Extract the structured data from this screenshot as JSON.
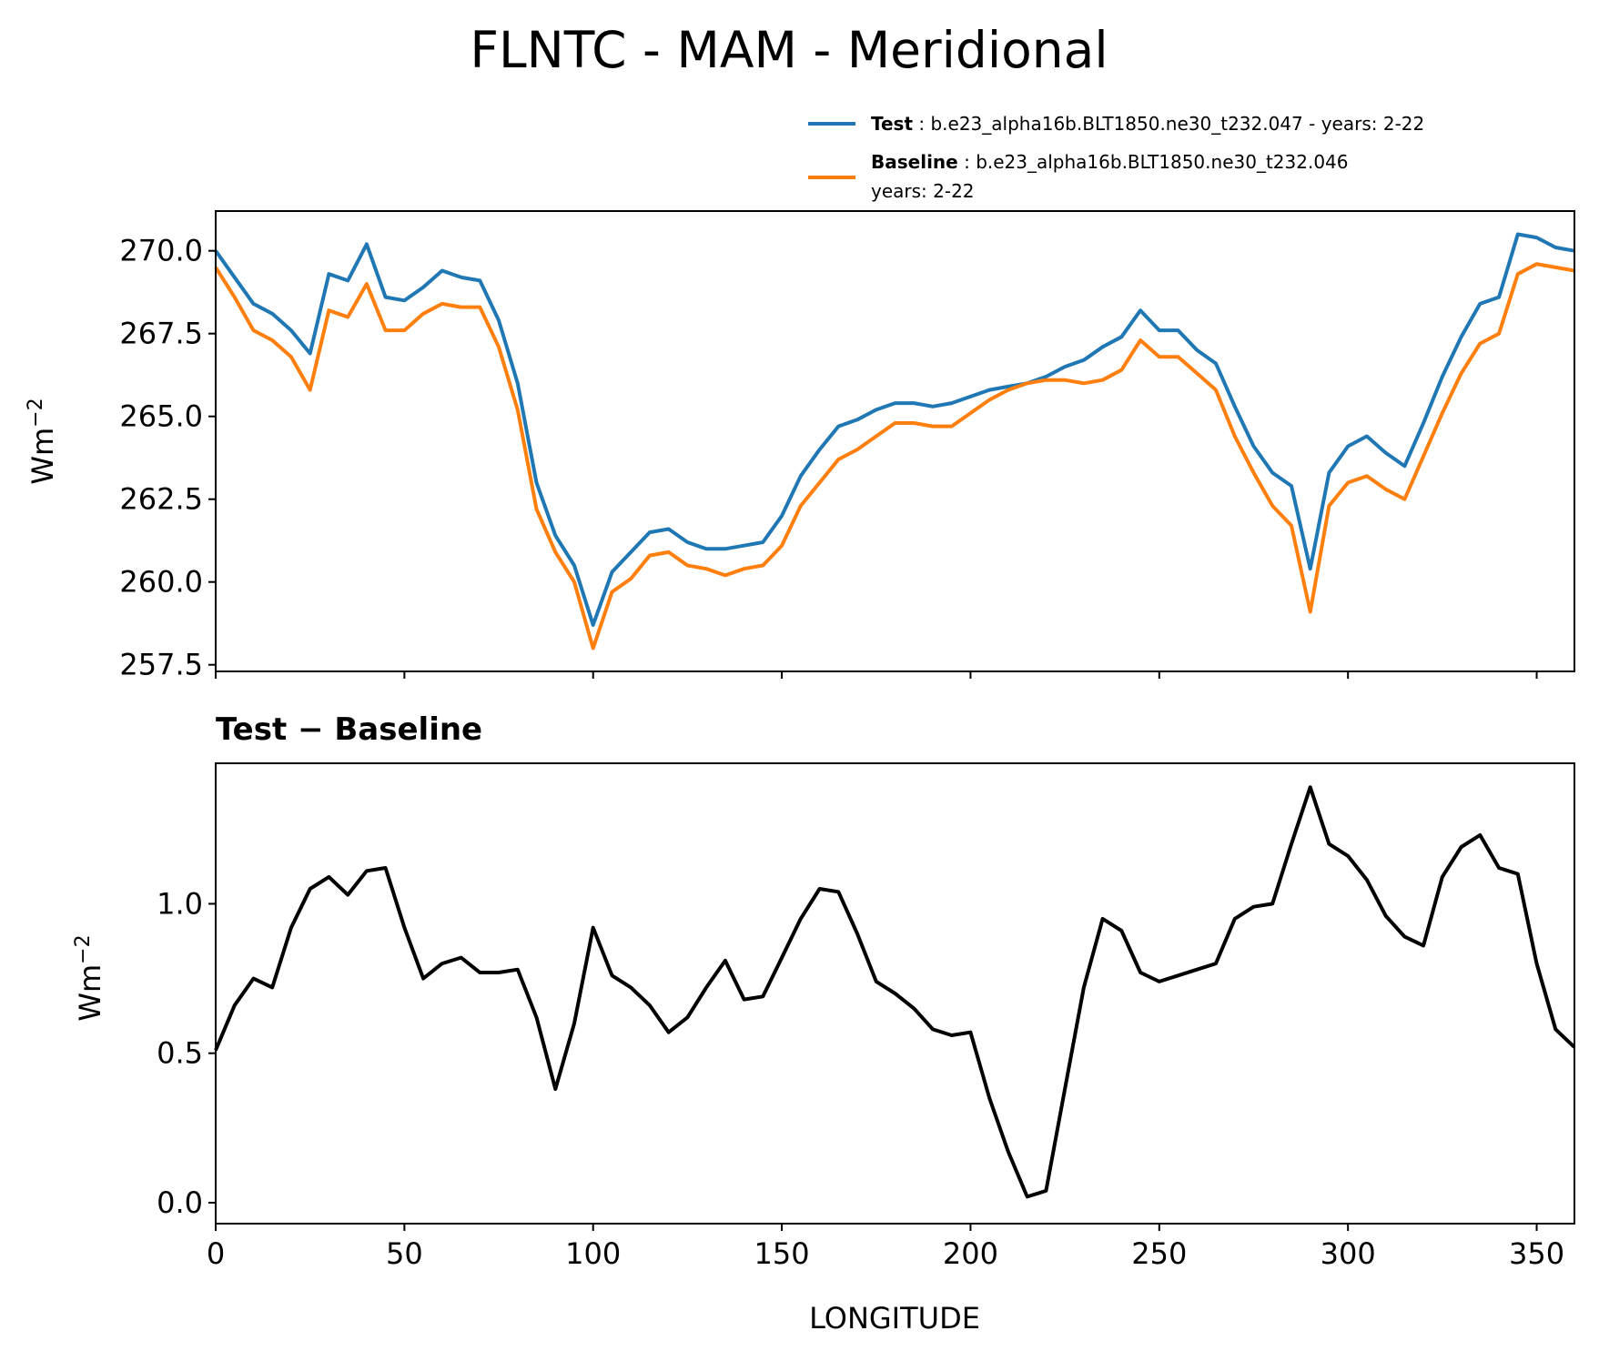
{
  "title": "FLNTC - MAM - Meridional",
  "colors": {
    "test": "#1f77b4",
    "baseline": "#ff7f0e",
    "diff": "#000000"
  },
  "legend": [
    {
      "name": "Test",
      "sep": " : ",
      "text": "b.e23_alpha16b.BLT1850.ne30_t232.047 - years: 2-22",
      "text2": ""
    },
    {
      "name": "Baseline",
      "sep": " : ",
      "text": "b.e23_alpha16b.BLT1850.ne30_t232.046",
      "text2": "years: 2-22"
    }
  ],
  "chart_data": [
    {
      "type": "line",
      "title": "",
      "ylabel": "Wm",
      "ylabel_sup": "−2",
      "xlim": [
        0,
        360
      ],
      "ylim": [
        257.3,
        271.2
      ],
      "yticks": [
        "257.5",
        "260.0",
        "262.5",
        "265.0",
        "267.5",
        "270.0"
      ],
      "legend_position": "above",
      "grid": false,
      "x": [
        0,
        5,
        10,
        15,
        20,
        25,
        30,
        35,
        40,
        45,
        50,
        55,
        60,
        65,
        70,
        75,
        80,
        85,
        90,
        95,
        100,
        105,
        110,
        115,
        120,
        125,
        130,
        135,
        140,
        145,
        150,
        155,
        160,
        165,
        170,
        175,
        180,
        185,
        190,
        195,
        200,
        205,
        210,
        215,
        220,
        225,
        230,
        235,
        240,
        245,
        250,
        255,
        260,
        265,
        270,
        275,
        280,
        285,
        290,
        295,
        300,
        305,
        310,
        315,
        320,
        325,
        330,
        335,
        340,
        345,
        350,
        355,
        360
      ],
      "series": [
        {
          "name": "Test",
          "values": [
            270.0,
            269.2,
            268.4,
            268.1,
            267.6,
            266.9,
            269.3,
            269.1,
            270.2,
            268.6,
            268.5,
            268.9,
            269.4,
            269.2,
            269.1,
            267.9,
            266.0,
            263.0,
            261.4,
            260.5,
            258.7,
            260.3,
            260.9,
            261.5,
            261.6,
            261.2,
            261.0,
            261.0,
            261.1,
            261.2,
            262.0,
            263.2,
            264.0,
            264.7,
            264.9,
            265.2,
            265.4,
            265.4,
            265.3,
            265.4,
            265.6,
            265.8,
            265.9,
            266.0,
            266.2,
            266.5,
            266.7,
            267.1,
            267.4,
            268.2,
            267.6,
            267.6,
            267.0,
            266.6,
            265.3,
            264.1,
            263.3,
            262.9,
            260.4,
            263.3,
            264.1,
            264.4,
            263.9,
            263.5,
            264.8,
            266.2,
            267.4,
            268.4,
            268.6,
            270.5,
            270.4,
            270.1,
            270.0
          ]
        },
        {
          "name": "Baseline",
          "values": [
            269.5,
            268.6,
            267.6,
            267.3,
            266.8,
            265.8,
            268.2,
            268.0,
            269.0,
            267.6,
            267.6,
            268.1,
            268.4,
            268.3,
            268.3,
            267.1,
            265.2,
            262.2,
            260.9,
            260.0,
            258.0,
            259.7,
            260.1,
            260.8,
            260.9,
            260.5,
            260.4,
            260.2,
            260.4,
            260.5,
            261.1,
            262.3,
            263.0,
            263.7,
            264.0,
            264.4,
            264.8,
            264.8,
            264.7,
            264.7,
            265.1,
            265.5,
            265.8,
            266.0,
            266.1,
            266.1,
            266.0,
            266.1,
            266.4,
            267.3,
            266.8,
            266.8,
            266.3,
            265.8,
            264.4,
            263.3,
            262.3,
            261.7,
            259.1,
            262.3,
            263.0,
            263.2,
            262.8,
            262.5,
            263.8,
            265.1,
            266.3,
            267.2,
            267.5,
            269.3,
            269.6,
            269.5,
            269.4
          ]
        }
      ]
    },
    {
      "type": "line",
      "title": "Test − Baseline",
      "xlabel": "LONGITUDE",
      "ylabel": "Wm",
      "ylabel_sup": "−2",
      "xlim": [
        0,
        360
      ],
      "ylim": [
        -0.07,
        1.47
      ],
      "xticks": [
        "0",
        "50",
        "100",
        "150",
        "200",
        "250",
        "300",
        "350"
      ],
      "yticks": [
        "0.0",
        "0.5",
        "1.0"
      ],
      "grid": false,
      "x": [
        0,
        5,
        10,
        15,
        20,
        25,
        30,
        35,
        40,
        45,
        50,
        55,
        60,
        65,
        70,
        75,
        80,
        85,
        90,
        95,
        100,
        105,
        110,
        115,
        120,
        125,
        130,
        135,
        140,
        145,
        150,
        155,
        160,
        165,
        170,
        175,
        180,
        185,
        190,
        195,
        200,
        205,
        210,
        215,
        220,
        225,
        230,
        235,
        240,
        245,
        250,
        255,
        260,
        265,
        270,
        275,
        280,
        285,
        290,
        295,
        300,
        305,
        310,
        315,
        320,
        325,
        330,
        335,
        340,
        345,
        350,
        355,
        360
      ],
      "series": [
        {
          "name": "",
          "values": [
            0.51,
            0.66,
            0.75,
            0.72,
            0.92,
            1.05,
            1.09,
            1.03,
            1.11,
            1.12,
            0.92,
            0.75,
            0.8,
            0.82,
            0.77,
            0.77,
            0.78,
            0.62,
            0.38,
            0.6,
            0.92,
            0.76,
            0.72,
            0.66,
            0.57,
            0.62,
            0.72,
            0.81,
            0.68,
            0.69,
            0.82,
            0.95,
            1.05,
            1.04,
            0.9,
            0.74,
            0.7,
            0.65,
            0.58,
            0.56,
            0.57,
            0.35,
            0.17,
            0.02,
            0.04,
            0.38,
            0.72,
            0.95,
            0.91,
            0.77,
            0.74,
            0.76,
            0.78,
            0.8,
            0.95,
            0.99,
            1.0,
            1.2,
            1.39,
            1.2,
            1.16,
            1.08,
            0.96,
            0.89,
            0.86,
            1.09,
            1.19,
            1.23,
            1.12,
            1.1,
            0.8,
            0.58,
            0.52
          ]
        }
      ]
    }
  ]
}
